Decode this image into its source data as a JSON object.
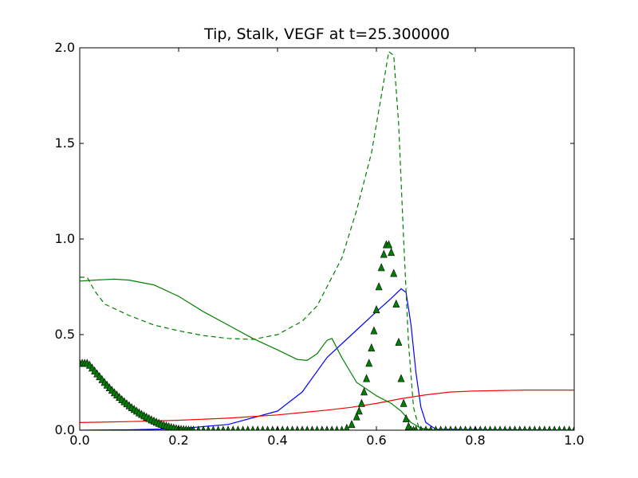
{
  "chart_data": {
    "type": "line",
    "title": "Tip, Stalk, VEGF at t=25.300000",
    "xlabel": "",
    "ylabel": "",
    "xlim": [
      0.0,
      1.0
    ],
    "ylim": [
      0.0,
      2.0
    ],
    "x_ticks": [
      "0.0",
      "0.2",
      "0.4",
      "0.6",
      "0.8",
      "1.0"
    ],
    "y_ticks": [
      "0.0",
      "0.5",
      "1.0",
      "1.5",
      "2.0"
    ],
    "grid": false,
    "legend": "none",
    "series": [
      {
        "color": "#0000ff",
        "style": "solid",
        "x": [
          0.0,
          0.1,
          0.2,
          0.3,
          0.4,
          0.45,
          0.5,
          0.55,
          0.6,
          0.63,
          0.65,
          0.66,
          0.67,
          0.68,
          0.69,
          0.7,
          0.72,
          1.0
        ],
        "y": [
          0.0,
          0.002,
          0.008,
          0.03,
          0.1,
          0.2,
          0.38,
          0.5,
          0.62,
          0.69,
          0.74,
          0.72,
          0.55,
          0.3,
          0.12,
          0.04,
          0.005,
          0.0
        ]
      },
      {
        "color": "#ff0000",
        "style": "solid",
        "x": [
          0.0,
          0.1,
          0.2,
          0.3,
          0.4,
          0.5,
          0.55,
          0.6,
          0.65,
          0.7,
          0.75,
          0.8,
          0.9,
          1.0
        ],
        "y": [
          0.04,
          0.045,
          0.052,
          0.063,
          0.08,
          0.105,
          0.12,
          0.14,
          0.165,
          0.185,
          0.2,
          0.205,
          0.21,
          0.21
        ]
      },
      {
        "color": "#008000",
        "style": "solid",
        "x": [
          0.0,
          0.03,
          0.07,
          0.1,
          0.15,
          0.2,
          0.25,
          0.3,
          0.35,
          0.4,
          0.44,
          0.46,
          0.48,
          0.5,
          0.51,
          0.53,
          0.56,
          0.6,
          0.63,
          0.65,
          0.67,
          0.69,
          0.72,
          1.0
        ],
        "y": [
          0.78,
          0.785,
          0.79,
          0.785,
          0.76,
          0.7,
          0.62,
          0.55,
          0.48,
          0.42,
          0.37,
          0.365,
          0.4,
          0.47,
          0.48,
          0.38,
          0.25,
          0.18,
          0.14,
          0.1,
          0.04,
          0.01,
          0.0,
          0.0
        ]
      },
      {
        "color": "#008000",
        "style": "dashed",
        "x": [
          0.0,
          0.015,
          0.03,
          0.05,
          0.1,
          0.15,
          0.2,
          0.25,
          0.3,
          0.35,
          0.4,
          0.45,
          0.48,
          0.5,
          0.53,
          0.56,
          0.59,
          0.61,
          0.625,
          0.635,
          0.645,
          0.655,
          0.665,
          0.675,
          0.685,
          0.7,
          1.0
        ],
        "y": [
          0.8,
          0.8,
          0.73,
          0.66,
          0.6,
          0.55,
          0.52,
          0.495,
          0.48,
          0.475,
          0.5,
          0.57,
          0.65,
          0.75,
          0.9,
          1.15,
          1.45,
          1.75,
          1.98,
          1.96,
          1.6,
          1.0,
          0.45,
          0.12,
          0.02,
          0.0,
          0.0
        ]
      },
      {
        "color": "#008000",
        "style": "markers",
        "marker": "triangle",
        "x": [
          0.0,
          0.005,
          0.01,
          0.015,
          0.02,
          0.025,
          0.03,
          0.035,
          0.04,
          0.045,
          0.05,
          0.055,
          0.06,
          0.065,
          0.07,
          0.075,
          0.08,
          0.085,
          0.09,
          0.095,
          0.1,
          0.105,
          0.11,
          0.115,
          0.12,
          0.125,
          0.13,
          0.135,
          0.14,
          0.145,
          0.15,
          0.155,
          0.16,
          0.165,
          0.17,
          0.175,
          0.18,
          0.185,
          0.19,
          0.195,
          0.2,
          0.205,
          0.21,
          0.215,
          0.22,
          0.225,
          0.23,
          0.24,
          0.25,
          0.26,
          0.27,
          0.28,
          0.29,
          0.3,
          0.31,
          0.32,
          0.33,
          0.34,
          0.35,
          0.36,
          0.37,
          0.38,
          0.39,
          0.4,
          0.41,
          0.42,
          0.43,
          0.44,
          0.45,
          0.46,
          0.47,
          0.48,
          0.49,
          0.5,
          0.51,
          0.52,
          0.53,
          0.54,
          0.55,
          0.56,
          0.565,
          0.57,
          0.575,
          0.58,
          0.585,
          0.59,
          0.595,
          0.6,
          0.605,
          0.61,
          0.615,
          0.62,
          0.625,
          0.63,
          0.635,
          0.64,
          0.645,
          0.65,
          0.655,
          0.66,
          0.665,
          0.67,
          0.675,
          0.68,
          0.69,
          0.7,
          0.71,
          0.72,
          0.73,
          0.74,
          0.75,
          0.76,
          0.77,
          0.78,
          0.79,
          0.8,
          0.81,
          0.82,
          0.83,
          0.84,
          0.85,
          0.86,
          0.87,
          0.88,
          0.89,
          0.9,
          0.91,
          0.92,
          0.93,
          0.94,
          0.95,
          0.96,
          0.97,
          0.98,
          0.99,
          1.0
        ],
        "y": [
          0.35,
          0.35,
          0.35,
          0.35,
          0.34,
          0.325,
          0.31,
          0.295,
          0.28,
          0.265,
          0.25,
          0.236,
          0.222,
          0.209,
          0.196,
          0.184,
          0.172,
          0.16,
          0.149,
          0.138,
          0.128,
          0.118,
          0.109,
          0.1,
          0.091,
          0.083,
          0.075,
          0.068,
          0.061,
          0.054,
          0.048,
          0.042,
          0.036,
          0.031,
          0.026,
          0.022,
          0.018,
          0.014,
          0.011,
          0.008,
          0.006,
          0.004,
          0.003,
          0.002,
          0.001,
          0.0,
          0.0,
          0.0,
          0.0,
          0.0,
          0.0,
          0.0,
          0.0,
          0.0,
          0.0,
          0.0,
          0.0,
          0.0,
          0.0,
          0.0,
          0.0,
          0.0,
          0.0,
          0.0,
          0.0,
          0.0,
          0.0,
          0.0,
          0.0,
          0.0,
          0.0,
          0.0,
          0.0,
          0.0,
          0.0,
          0.0,
          0.0,
          0.01,
          0.03,
          0.07,
          0.1,
          0.14,
          0.2,
          0.27,
          0.35,
          0.43,
          0.52,
          0.63,
          0.75,
          0.85,
          0.92,
          0.97,
          0.97,
          0.93,
          0.82,
          0.66,
          0.46,
          0.27,
          0.14,
          0.06,
          0.02,
          0.0,
          0.0,
          0.0,
          0.0,
          0.0,
          0.0,
          0.0,
          0.0,
          0.0,
          0.0,
          0.0,
          0.0,
          0.0,
          0.0,
          0.0,
          0.0,
          0.0,
          0.0,
          0.0,
          0.0,
          0.0,
          0.0,
          0.0,
          0.0,
          0.0,
          0.0,
          0.0,
          0.0,
          0.0,
          0.0,
          0.0,
          0.0,
          0.0,
          0.0,
          0.0
        ]
      }
    ]
  }
}
